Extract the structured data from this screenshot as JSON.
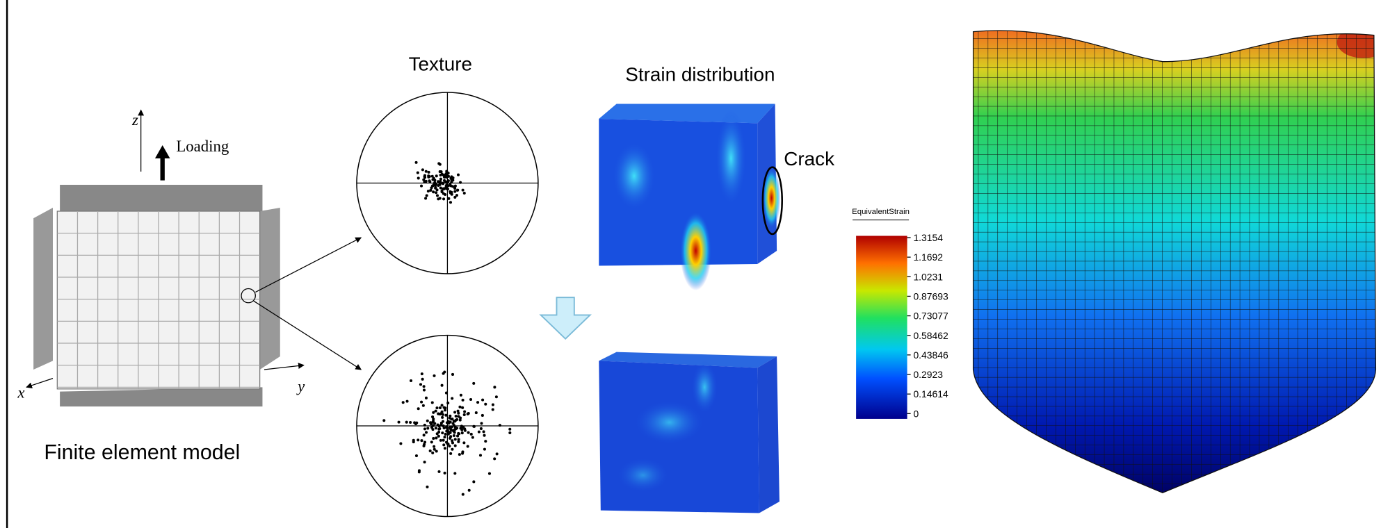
{
  "figure": {
    "model_label": "Finite element model",
    "loading": "Loading",
    "axes": {
      "x": "x",
      "y": "y",
      "z": "z"
    },
    "texture_title": "Texture",
    "strain_title": "Strain distribution",
    "crack": "Crack",
    "colorbar": {
      "title": "EquivalentStrain",
      "labels": [
        "1.3154",
        "1.1692",
        "1.0231",
        "0.87693",
        "0.73077",
        "0.58462",
        "0.43846",
        "0.2923",
        "0.14614",
        "0"
      ]
    }
  }
}
